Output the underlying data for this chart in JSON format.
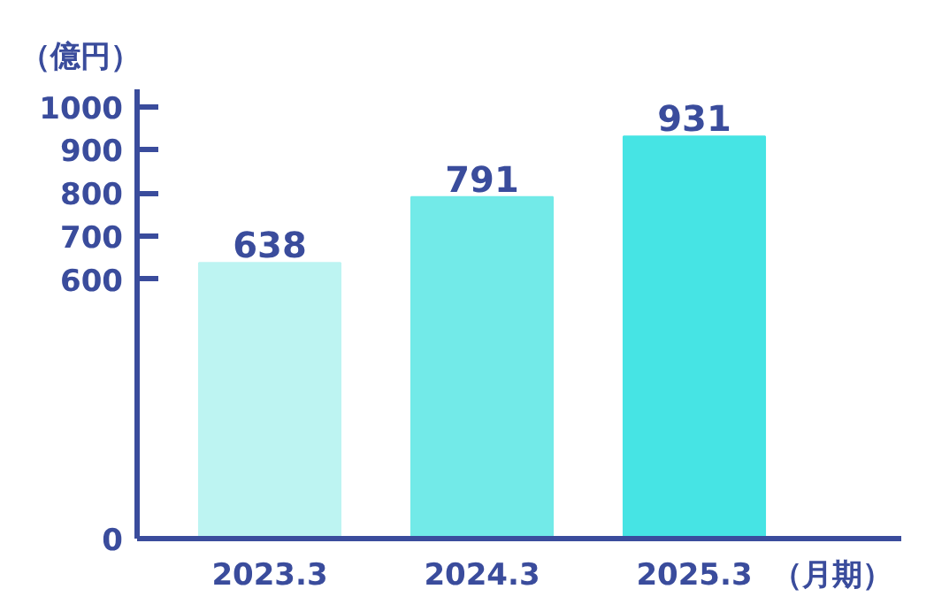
{
  "chart_data": {
    "type": "bar",
    "ylabel": "（億円）",
    "xlabel": "（月期）",
    "categories": [
      "2023.3",
      "2024.3",
      "2025.3"
    ],
    "values": [
      638,
      791,
      931
    ],
    "colors": [
      "#bdf4f2",
      "#72eae8",
      "#46e4e4"
    ],
    "data_labels": true,
    "ylim": [
      0,
      1040
    ],
    "yticks": [
      0,
      600,
      700,
      800,
      900,
      1000
    ],
    "grid": false
  }
}
